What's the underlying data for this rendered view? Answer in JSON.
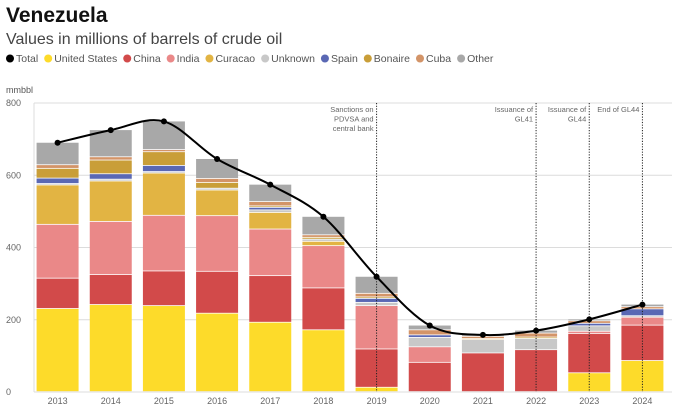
{
  "chart_data": {
    "type": "bar",
    "stacked": true,
    "title": "Venezuela",
    "subtitle": "Values in millions of barrels of crude oil",
    "ylabel": "mmbbl",
    "ylim": [
      0,
      800
    ],
    "yticks": [
      0,
      200,
      400,
      600,
      800
    ],
    "grid": true,
    "legend_placement": "top",
    "categories": [
      "2013",
      "2014",
      "2015",
      "2016",
      "2017",
      "2018",
      "2019",
      "2020",
      "2021",
      "2022",
      "2023",
      "2024"
    ],
    "series": [
      {
        "name": "United States",
        "color": "#fddb2a",
        "values": [
          230,
          241,
          238,
          217,
          192,
          171,
          12,
          0,
          0,
          0,
          52,
          86
        ]
      },
      {
        "name": "China",
        "color": "#d24a4a",
        "values": [
          84,
          83,
          96,
          116,
          129,
          116,
          106,
          81,
          107,
          116,
          109,
          98
        ]
      },
      {
        "name": "India",
        "color": "#ea8888",
        "values": [
          149,
          147,
          154,
          154,
          129,
          117,
          120,
          43,
          0,
          0,
          6,
          22
        ]
      },
      {
        "name": "Curacao",
        "color": "#e2b443",
        "values": [
          109,
          112,
          117,
          71,
          46,
          12,
          0,
          0,
          0,
          0,
          0,
          0
        ]
      },
      {
        "name": "Unknown",
        "color": "#c8c8c8",
        "values": [
          4,
          5,
          4,
          5,
          7,
          6,
          9,
          26,
          37,
          31,
          15,
          4
        ]
      },
      {
        "name": "Spain",
        "color": "#5a68b4",
        "values": [
          15,
          15,
          17,
          0,
          7,
          0,
          11,
          7,
          0,
          0,
          7,
          19
        ]
      },
      {
        "name": "Bonaire",
        "color": "#c99e38",
        "values": [
          27,
          38,
          38,
          16,
          4,
          5,
          4,
          0,
          3,
          4,
          0,
          0
        ]
      },
      {
        "name": "Cuba",
        "color": "#d39468",
        "values": [
          10,
          9,
          6,
          11,
          12,
          7,
          10,
          14,
          6,
          11,
          7,
          6
        ]
      },
      {
        "name": "Other",
        "color": "#a8a8a8",
        "values": [
          62,
          75,
          79,
          55,
          48,
          51,
          47,
          13,
          6,
          8,
          5,
          7
        ]
      }
    ],
    "line": {
      "name": "Total",
      "color": "#000000",
      "values": [
        690,
        725,
        749,
        645,
        574,
        485,
        319,
        184,
        158,
        170,
        201,
        242
      ]
    },
    "annotations": [
      {
        "category": "2019",
        "lines": [
          "Sanctions on",
          "PDVSA and",
          "central bank"
        ]
      },
      {
        "category": "2022",
        "lines": [
          "Issuance of",
          "GL41"
        ]
      },
      {
        "category": "2023",
        "lines": [
          "Issuance of",
          "GL44"
        ]
      },
      {
        "category": "2024",
        "lines": [
          "End of GL44"
        ]
      }
    ]
  }
}
